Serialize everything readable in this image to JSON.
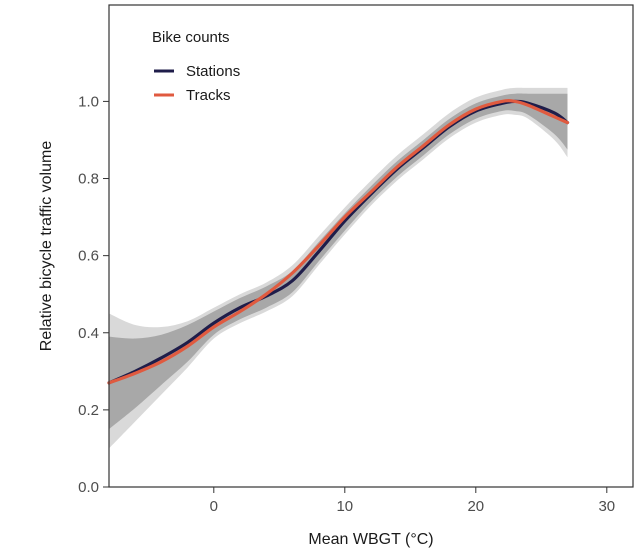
{
  "chart_data": {
    "type": "line",
    "xlabel": "Mean WBGT (°C)",
    "ylabel": "Relative bicycle traffic volume",
    "xlim": [
      -8,
      32
    ],
    "ylim": [
      0,
      1.25
    ],
    "x_ticks": [
      0,
      10,
      20,
      30
    ],
    "y_ticks": [
      0.0,
      0.2,
      0.4,
      0.6,
      0.8,
      1.0
    ],
    "grid": false,
    "legend": {
      "title": "Bike counts",
      "placement": "top-left",
      "entries": [
        "Stations",
        "Tracks"
      ]
    },
    "series": [
      {
        "name": "Stations",
        "color": "#1f1d4a",
        "x": [
          -8,
          -6,
          -4,
          -2,
          0,
          2,
          4,
          6,
          8,
          10,
          12,
          14,
          16,
          18,
          20,
          22,
          23,
          24,
          26,
          27
        ],
        "y": [
          0.27,
          0.3,
          0.335,
          0.375,
          0.425,
          0.465,
          0.495,
          0.535,
          0.61,
          0.69,
          0.76,
          0.825,
          0.88,
          0.935,
          0.975,
          0.995,
          1.0,
          0.995,
          0.97,
          0.945
        ],
        "band_inner": {
          "lower": [
            0.15,
            0.205,
            0.265,
            0.325,
            0.395,
            0.435,
            0.465,
            0.505,
            0.585,
            0.665,
            0.74,
            0.805,
            0.86,
            0.915,
            0.955,
            0.975,
            0.975,
            0.965,
            0.915,
            0.875
          ],
          "upper": [
            0.39,
            0.385,
            0.395,
            0.42,
            0.455,
            0.49,
            0.52,
            0.56,
            0.635,
            0.71,
            0.78,
            0.845,
            0.9,
            0.955,
            0.995,
            1.015,
            1.02,
            1.02,
            1.02,
            1.02
          ]
        },
        "band_outer": {
          "lower": [
            0.1,
            0.17,
            0.24,
            0.31,
            0.385,
            0.425,
            0.455,
            0.495,
            0.575,
            0.655,
            0.73,
            0.795,
            0.85,
            0.905,
            0.945,
            0.965,
            0.965,
            0.955,
            0.9,
            0.855
          ],
          "upper": [
            0.45,
            0.42,
            0.415,
            0.43,
            0.465,
            0.5,
            0.53,
            0.575,
            0.65,
            0.725,
            0.795,
            0.86,
            0.915,
            0.97,
            1.01,
            1.03,
            1.035,
            1.035,
            1.035,
            1.035
          ]
        }
      },
      {
        "name": "Tracks",
        "color": "#e05a3f",
        "x": [
          -8,
          -6,
          -4,
          -2,
          0,
          2,
          4,
          6,
          8,
          10,
          12,
          14,
          16,
          18,
          20,
          22,
          23,
          24,
          26,
          27
        ],
        "y": [
          0.27,
          0.295,
          0.325,
          0.365,
          0.415,
          0.455,
          0.5,
          0.555,
          0.625,
          0.7,
          0.765,
          0.83,
          0.885,
          0.94,
          0.98,
          1.0,
          1.0,
          0.99,
          0.96,
          0.945
        ]
      }
    ]
  }
}
